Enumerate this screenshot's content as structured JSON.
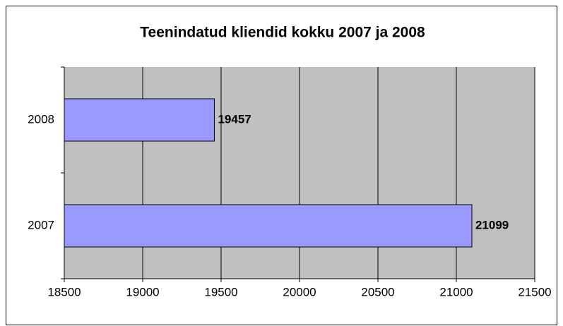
{
  "chart_data": {
    "type": "bar",
    "orientation": "horizontal",
    "title": "Teenindatud kliendid kokku 2007 ja 2008",
    "categories": [
      "2007",
      "2008"
    ],
    "values": [
      21099,
      19457
    ],
    "color": "#9999ff",
    "xlim": [
      18500,
      21500
    ],
    "xticks": [
      18500,
      19000,
      19500,
      20000,
      20500,
      21000,
      21500
    ],
    "grid": true
  }
}
